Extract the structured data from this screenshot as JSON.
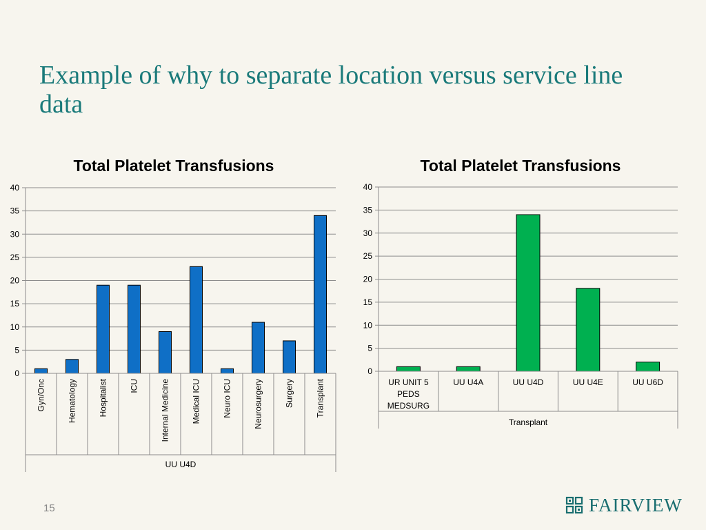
{
  "slide": {
    "title": "Example of why to separate location versus service line data",
    "page_number": "15",
    "logo_text": "FAIRVIEW"
  },
  "colors": {
    "title": "#1a7a7a",
    "bar_blue": "#0f6fc6",
    "bar_green": "#00b050",
    "background": "#f7f5ee"
  },
  "chart_data": [
    {
      "type": "bar",
      "title": "Total Platelet Transfusions",
      "categories": [
        "Gyn/Onc",
        "Hematology",
        "Hospitalist",
        "ICU",
        "Internal Medicine",
        "Medical ICU",
        "Neuro ICU",
        "Neurosurgery",
        "Surgery",
        "Transplant"
      ],
      "group_label": "UU U4D",
      "values": [
        1,
        3,
        19,
        19,
        9,
        23,
        1,
        11,
        7,
        34
      ],
      "ylim": [
        0,
        40
      ],
      "yticks": [
        0,
        5,
        10,
        15,
        20,
        25,
        30,
        35,
        40
      ],
      "grid": true,
      "color": "#0f6fc6"
    },
    {
      "type": "bar",
      "title": "Total Platelet Transfusions",
      "categories": [
        "UR UNIT 5 PEDS MEDSURG",
        "UU U4A",
        "UU U4D",
        "UU U4E",
        "UU U6D"
      ],
      "group_label": "Transplant",
      "values": [
        1,
        1,
        34,
        18,
        2
      ],
      "ylim": [
        0,
        40
      ],
      "yticks": [
        0,
        5,
        10,
        15,
        20,
        25,
        30,
        35,
        40
      ],
      "grid": true,
      "color": "#00b050"
    }
  ]
}
